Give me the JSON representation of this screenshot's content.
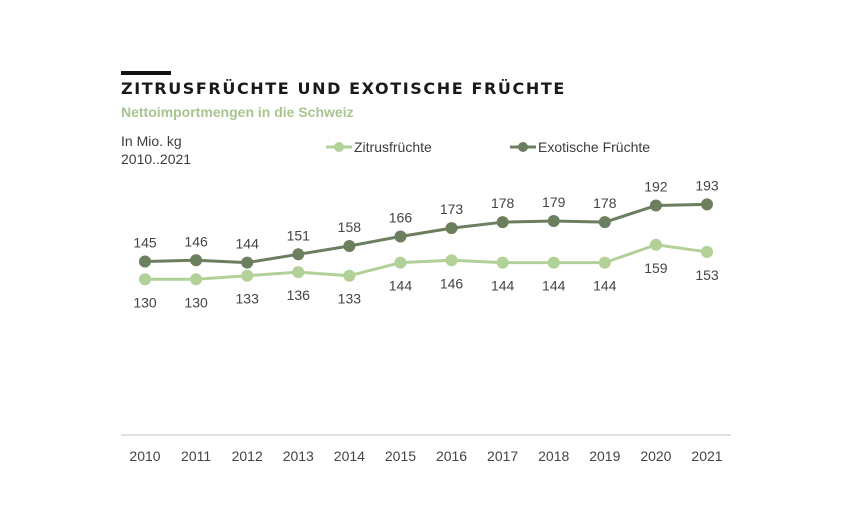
{
  "header": {
    "title": "ZITRUSFRÜCHTE UND EXOTISCHE FRÜCHTE",
    "subtitle": "Nettoimportmengen in die Schweiz",
    "unit_line1": "In Mio. kg",
    "unit_line2": "2010..2021"
  },
  "colors": {
    "zitrus": "#b2d198",
    "exotisch": "#6b7f5f",
    "subtitle": "#a9c48f",
    "axis": "#d9d9d9"
  },
  "chart_data": {
    "type": "line",
    "title": "ZITRUSFRÜCHTE UND EXOTISCHE FRÜCHTE",
    "subtitle": "Nettoimportmengen in die Schweiz",
    "xlabel": "",
    "ylabel": "In Mio. kg",
    "x": [
      "2010",
      "2011",
      "2012",
      "2013",
      "2014",
      "2015",
      "2016",
      "2017",
      "2018",
      "2019",
      "2020",
      "2021"
    ],
    "ylim": [
      0,
      200
    ],
    "grid": false,
    "legend": "top-center",
    "series": [
      {
        "name": "Zitrusfrüchte",
        "color": "#b2d198",
        "label_position": "below",
        "values": [
          130,
          130,
          133,
          136,
          133,
          144,
          146,
          144,
          144,
          144,
          159,
          153
        ]
      },
      {
        "name": "Exotische Früchte",
        "color": "#6b7f5f",
        "label_position": "above",
        "values": [
          145,
          146,
          144,
          151,
          158,
          166,
          173,
          178,
          179,
          178,
          192,
          193
        ]
      }
    ]
  }
}
